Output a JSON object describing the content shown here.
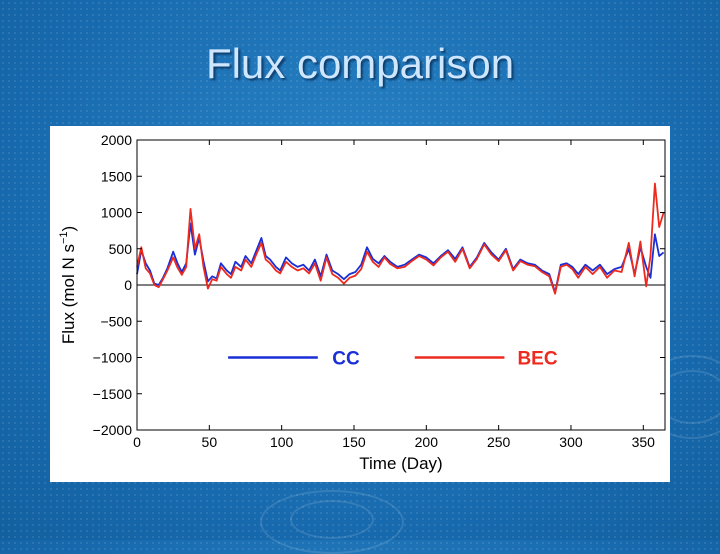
{
  "slide": {
    "title": "Flux comparison"
  },
  "colors": {
    "cc": "#1a2fd6",
    "bec": "#ee2a1e",
    "background": "#1a73b8"
  },
  "chart_data": {
    "type": "line",
    "title": "",
    "xlabel": "Time (Day)",
    "ylabel_main": "Flux (mol N s",
    "ylabel_sup": "−1",
    "ylabel_end": ")",
    "xlim": [
      0,
      365
    ],
    "ylim": [
      -2000,
      2000
    ],
    "x_ticks": [
      0,
      50,
      100,
      150,
      200,
      250,
      300,
      350
    ],
    "x_tick_labels": [
      "0",
      "50",
      "100",
      "150",
      "200",
      "250",
      "300",
      "350"
    ],
    "y_ticks": [
      2000,
      1500,
      1000,
      500,
      0,
      -500,
      -1000,
      -1500,
      -2000
    ],
    "y_tick_labels": [
      "2000",
      "1500",
      "1000",
      "500",
      "0",
      "−500",
      "−1000",
      "−1500",
      "−2000"
    ],
    "grid": false,
    "zero_line": true,
    "legend_placement": "center",
    "series": [
      {
        "name": "CC",
        "color": "#1a2fd6",
        "x": [
          0,
          3,
          6,
          9,
          12,
          15,
          18,
          21,
          25,
          28,
          31,
          34,
          37,
          40,
          43,
          46,
          49,
          52,
          55,
          58,
          62,
          65,
          68,
          72,
          75,
          79,
          82,
          86,
          89,
          92,
          96,
          99,
          103,
          107,
          111,
          115,
          119,
          123,
          127,
          131,
          135,
          139,
          143,
          147,
          151,
          155,
          159,
          163,
          167,
          171,
          175,
          180,
          185,
          190,
          195,
          200,
          205,
          210,
          215,
          220,
          225,
          230,
          235,
          240,
          245,
          250,
          255,
          260,
          265,
          270,
          275,
          280,
          285,
          289,
          293,
          297,
          301,
          305,
          310,
          315,
          320,
          325,
          330,
          335,
          340,
          344,
          348,
          352,
          355,
          358,
          361,
          364
        ],
        "y": [
          150,
          480,
          300,
          200,
          20,
          0,
          100,
          230,
          460,
          300,
          180,
          300,
          850,
          420,
          650,
          330,
          50,
          120,
          90,
          300,
          200,
          150,
          320,
          250,
          400,
          300,
          450,
          650,
          400,
          350,
          250,
          200,
          380,
          300,
          250,
          280,
          200,
          350,
          120,
          420,
          200,
          150,
          80,
          150,
          180,
          280,
          520,
          360,
          300,
          400,
          320,
          250,
          280,
          350,
          420,
          380,
          300,
          400,
          480,
          360,
          520,
          250,
          380,
          580,
          450,
          350,
          500,
          220,
          350,
          300,
          280,
          200,
          150,
          -100,
          280,
          300,
          250,
          150,
          280,
          200,
          280,
          150,
          220,
          250,
          500,
          150,
          520,
          250,
          100,
          700,
          400,
          450
        ]
      },
      {
        "name": "BEC",
        "color": "#ee2a1e",
        "x": [
          0,
          3,
          6,
          9,
          12,
          15,
          18,
          21,
          25,
          28,
          31,
          34,
          37,
          40,
          43,
          46,
          49,
          52,
          55,
          58,
          62,
          65,
          68,
          72,
          75,
          79,
          82,
          86,
          89,
          92,
          96,
          99,
          103,
          107,
          111,
          115,
          119,
          123,
          127,
          131,
          135,
          139,
          143,
          147,
          151,
          155,
          159,
          163,
          167,
          171,
          175,
          180,
          185,
          190,
          195,
          200,
          205,
          210,
          215,
          220,
          225,
          230,
          235,
          240,
          245,
          250,
          255,
          260,
          265,
          270,
          275,
          280,
          285,
          289,
          293,
          297,
          301,
          305,
          310,
          315,
          320,
          325,
          330,
          335,
          340,
          344,
          348,
          352,
          355,
          358,
          361,
          364
        ],
        "y": [
          250,
          520,
          230,
          160,
          0,
          -30,
          80,
          200,
          380,
          240,
          140,
          250,
          1050,
          500,
          700,
          250,
          -50,
          80,
          60,
          250,
          150,
          100,
          250,
          200,
          350,
          250,
          400,
          580,
          350,
          300,
          200,
          160,
          320,
          250,
          200,
          230,
          160,
          300,
          60,
          380,
          150,
          100,
          20,
          100,
          130,
          220,
          460,
          320,
          250,
          380,
          290,
          230,
          250,
          330,
          400,
          350,
          270,
          380,
          460,
          320,
          500,
          230,
          360,
          560,
          420,
          330,
          480,
          200,
          330,
          280,
          260,
          180,
          120,
          -120,
          250,
          280,
          220,
          100,
          250,
          150,
          250,
          100,
          200,
          180,
          580,
          120,
          600,
          -20,
          400,
          1400,
          800,
          1000
        ]
      }
    ]
  }
}
